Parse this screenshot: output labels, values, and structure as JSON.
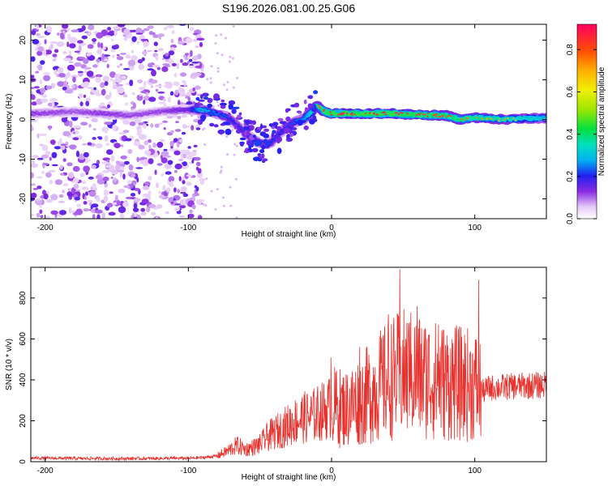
{
  "chart_data": [
    {
      "type": "heatmap",
      "title": "S196.2026.081.00.25.G06",
      "xlabel": "Height of straight line (km)",
      "ylabel": "Frequency (Hz)",
      "xlim": [
        -210,
        150
      ],
      "ylim": [
        -25,
        24
      ],
      "x_ticks": [
        -200,
        -100,
        0,
        100
      ],
      "x_tick_labels": [
        "-200",
        "-100",
        "0",
        "100"
      ],
      "y_ticks": [
        -20,
        -10,
        0,
        10,
        20
      ],
      "y_tick_labels": [
        "-20",
        "-10",
        "0",
        "10",
        "20"
      ],
      "colorbar": {
        "label": "Normalized spectral amplitude",
        "range": [
          0,
          0.92
        ],
        "ticks": [
          0.0,
          0.2,
          0.4,
          0.6,
          0.8
        ],
        "tick_labels": [
          "0.0",
          "0.2",
          "0.4",
          "0.6",
          "0.8"
        ]
      },
      "ridge": {
        "x": [
          -210,
          -180,
          -160,
          -140,
          -120,
          -100,
          -92,
          -80,
          -72,
          -66,
          -60,
          -55,
          -50,
          -45,
          -40,
          -35,
          -30,
          -25,
          -20,
          -15,
          -10,
          -5,
          0,
          20,
          40,
          60,
          80,
          90,
          100,
          120,
          130,
          150
        ],
        "frequency": [
          1.5,
          2,
          1.5,
          1,
          2,
          2.5,
          2.5,
          1.5,
          0.5,
          -1.5,
          -3.5,
          -5,
          -6,
          -6.5,
          -5,
          -3,
          -1.5,
          -0.5,
          0,
          1.5,
          3.5,
          2,
          1.5,
          1.5,
          1.5,
          1.2,
          1,
          0,
          0.5,
          0,
          0.2,
          0.4
        ],
        "amplitude": [
          0.14,
          0.12,
          0.14,
          0.13,
          0.13,
          0.17,
          0.32,
          0.26,
          0.24,
          0.2,
          0.2,
          0.22,
          0.24,
          0.24,
          0.22,
          0.22,
          0.24,
          0.26,
          0.28,
          0.36,
          0.42,
          0.46,
          0.5,
          0.5,
          0.5,
          0.48,
          0.46,
          0.44,
          0.42,
          0.4,
          0.38,
          0.34
        ]
      },
      "noise_region_x": [
        -210,
        -90
      ],
      "noise_region_frequency": [
        -25,
        24
      ]
    },
    {
      "type": "line",
      "xlabel": "Height of straight line (km)",
      "ylabel": "SNR (10 * v/v)",
      "xlim": [
        -210,
        150
      ],
      "ylim": [
        0,
        950
      ],
      "x_ticks": [
        -200,
        -100,
        0,
        100
      ],
      "x_tick_labels": [
        "-200",
        "-100",
        "0",
        "100"
      ],
      "y_ticks": [
        0,
        200,
        400,
        600,
        800
      ],
      "y_tick_labels": [
        "0",
        "200",
        "400",
        "600",
        "800"
      ],
      "series": [
        {
          "name": "SNR",
          "color": "#e8302c",
          "x": [
            -210,
            -180,
            -150,
            -120,
            -100,
            -90,
            -80,
            -72,
            -66,
            -60,
            -55,
            -50,
            -45,
            -40,
            -35,
            -30,
            -25,
            -20,
            -15,
            -10,
            -5,
            0,
            10,
            20,
            30,
            40,
            50,
            60,
            70,
            80,
            90,
            100,
            105,
            110,
            120,
            130,
            140,
            150
          ],
          "y": [
            18,
            16,
            15,
            16,
            17,
            20,
            28,
            55,
            80,
            60,
            70,
            85,
            120,
            140,
            160,
            180,
            200,
            215,
            220,
            235,
            250,
            270,
            260,
            300,
            350,
            400,
            430,
            420,
            400,
            390,
            380,
            375,
            340,
            360,
            365,
            370,
            372,
            375
          ],
          "peaks": [
            {
              "x": 0,
              "y": 510
            },
            {
              "x": 20,
              "y": 560
            },
            {
              "x": 40,
              "y": 720
            },
            {
              "x": 48,
              "y": 940
            },
            {
              "x": 55,
              "y": 680
            },
            {
              "x": 60,
              "y": 760
            },
            {
              "x": 68,
              "y": 620
            },
            {
              "x": 75,
              "y": 670
            },
            {
              "x": 85,
              "y": 580
            },
            {
              "x": 103,
              "y": 890
            }
          ]
        }
      ]
    }
  ]
}
